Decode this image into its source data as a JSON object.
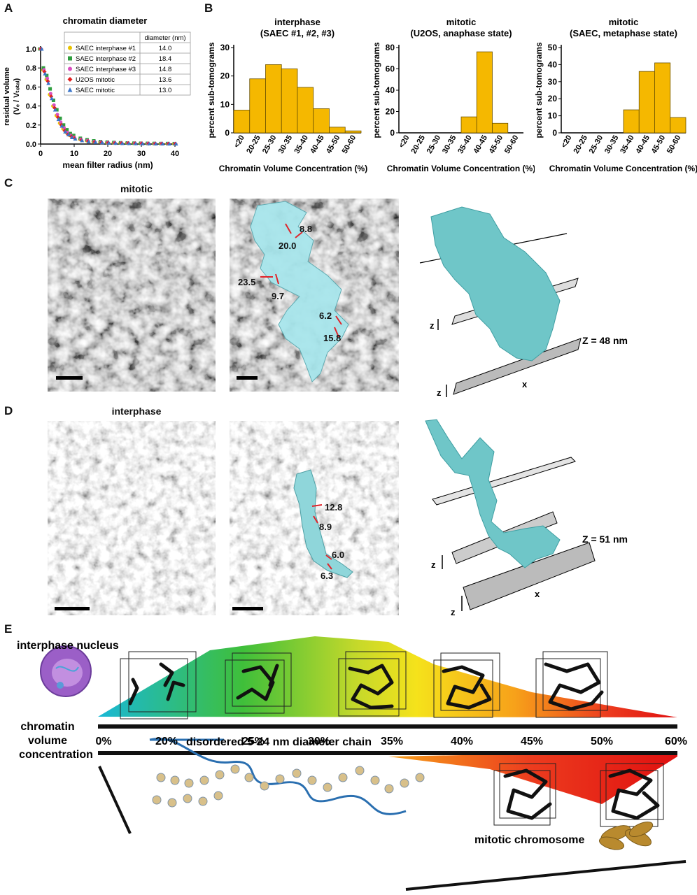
{
  "panels": {
    "A": "A",
    "B": "B",
    "C": "C",
    "D": "D",
    "E": "E"
  },
  "panelA": {
    "title": "chromatin diameter",
    "ylabel_main": "residual volume",
    "ylabel_sub": "(Vₑ / Vₜₒₜₐₗ)",
    "xlabel": "mean filter radius (nm)",
    "yticks": [
      "0.0",
      "0.2",
      "0.4",
      "0.6",
      "0.8",
      "1.0"
    ],
    "xticks": [
      "0",
      "10",
      "20",
      "30",
      "40"
    ],
    "legend_header": "diameter (nm)",
    "legend": [
      {
        "name": "SAEC interphase #1",
        "value": "14.0",
        "color": "#e8c200",
        "marker": "circle"
      },
      {
        "name": "SAEC interphase #2",
        "value": "18.4",
        "color": "#2e9e3e",
        "marker": "square"
      },
      {
        "name": "SAEC interphase #3",
        "value": "14.8",
        "color": "#d94fbf",
        "marker": "circle"
      },
      {
        "name": "U2OS mitotic",
        "value": "13.6",
        "color": "#e02020",
        "marker": "diamond"
      },
      {
        "name": "SAEC mitotic",
        "value": "13.0",
        "color": "#3a74c9",
        "marker": "triangle"
      }
    ]
  },
  "panelB": {
    "ylabel": "percent sub-tomograms",
    "xlabel": "Chromatin Volume Concentration (%)",
    "bar_color": "#f5b800",
    "categories": [
      "<20",
      "20-25",
      "25-30",
      "30-35",
      "35-40",
      "40-45",
      "45-50",
      "50-60"
    ],
    "charts": [
      {
        "title1": "interphase",
        "title2": "(SAEC #1, #2, #3)",
        "ymax": 30,
        "yticks": [
          "0",
          "10",
          "20",
          "30"
        ]
      },
      {
        "title1": "mitotic",
        "title2": "(U2OS, anaphase state)",
        "ymax": 80,
        "yticks": [
          "0",
          "20",
          "40",
          "60",
          "80"
        ]
      },
      {
        "title1": "mitotic",
        "title2": "(SAEC, metaphase state)",
        "ymax": 50,
        "yticks": [
          "0",
          "10",
          "20",
          "30",
          "40",
          "50"
        ]
      }
    ]
  },
  "chart_data": [
    {
      "type": "line",
      "title": "chromatin diameter",
      "xlabel": "mean filter radius (nm)",
      "ylabel": "residual volume (Vₑ / Vₜₒₜₐₗ)",
      "xlim": [
        0,
        40
      ],
      "ylim": [
        0,
        1.0
      ],
      "series": [
        {
          "name": "SAEC interphase #1",
          "x": [
            0,
            1,
            2,
            3,
            4,
            5,
            6,
            7,
            8,
            9,
            10,
            12,
            14,
            16,
            18,
            20,
            22,
            24,
            26,
            28,
            30,
            32,
            34,
            36,
            38,
            40
          ],
          "values": [
            1.0,
            0.78,
            0.68,
            0.52,
            0.4,
            0.3,
            0.22,
            0.16,
            0.12,
            0.09,
            0.07,
            0.05,
            0.035,
            0.025,
            0.02,
            0.015,
            0.012,
            0.01,
            0.01,
            0.008,
            0.007,
            0.006,
            0.005,
            0.005,
            0.004,
            0.004
          ]
        },
        {
          "name": "SAEC interphase #2",
          "x": [
            0,
            1,
            2,
            3,
            4,
            5,
            6,
            7,
            8,
            9,
            10,
            12,
            14,
            16,
            18,
            20,
            22,
            24,
            26,
            28,
            30,
            32,
            34,
            36,
            38,
            40
          ],
          "values": [
            1.0,
            0.8,
            0.72,
            0.58,
            0.46,
            0.36,
            0.27,
            0.2,
            0.15,
            0.11,
            0.09,
            0.06,
            0.045,
            0.033,
            0.025,
            0.02,
            0.016,
            0.013,
            0.011,
            0.009,
            0.008,
            0.007,
            0.006,
            0.005,
            0.005,
            0.004
          ]
        },
        {
          "name": "SAEC interphase #3",
          "x": [
            0,
            1,
            2,
            3,
            4,
            5,
            6,
            7,
            8,
            9,
            10,
            12,
            14,
            16,
            18,
            20,
            22,
            24,
            26,
            28,
            30,
            32,
            34,
            36,
            38,
            40
          ],
          "values": [
            1.0,
            0.78,
            0.69,
            0.53,
            0.41,
            0.31,
            0.23,
            0.17,
            0.12,
            0.09,
            0.07,
            0.05,
            0.036,
            0.026,
            0.02,
            0.016,
            0.012,
            0.01,
            0.01,
            0.008,
            0.007,
            0.006,
            0.005,
            0.005,
            0.004,
            0.004
          ]
        },
        {
          "name": "U2OS mitotic",
          "x": [
            0,
            1,
            2,
            3,
            4,
            5,
            6,
            7,
            8,
            9,
            10,
            12,
            14,
            16,
            18,
            20,
            22,
            24,
            26,
            28,
            30,
            32,
            34,
            36,
            38,
            40
          ],
          "values": [
            1.0,
            0.76,
            0.66,
            0.5,
            0.38,
            0.28,
            0.2,
            0.14,
            0.1,
            0.08,
            0.06,
            0.04,
            0.03,
            0.022,
            0.017,
            0.013,
            0.01,
            0.009,
            0.008,
            0.007,
            0.006,
            0.005,
            0.005,
            0.004,
            0.004,
            0.003
          ]
        },
        {
          "name": "SAEC mitotic",
          "x": [
            0,
            1,
            2,
            3,
            4,
            5,
            6,
            7,
            8,
            9,
            10,
            12,
            14,
            16,
            18,
            20,
            22,
            24,
            26,
            28,
            30,
            32,
            34,
            36,
            38,
            40
          ],
          "values": [
            1.0,
            0.74,
            0.64,
            0.48,
            0.36,
            0.26,
            0.19,
            0.13,
            0.1,
            0.07,
            0.055,
            0.038,
            0.027,
            0.02,
            0.016,
            0.012,
            0.01,
            0.008,
            0.007,
            0.006,
            0.005,
            0.005,
            0.004,
            0.004,
            0.003,
            0.003
          ]
        }
      ]
    },
    {
      "type": "bar",
      "title": "interphase (SAEC #1, #2, #3)",
      "xlabel": "Chromatin Volume Concentration (%)",
      "ylabel": "percent sub-tomograms",
      "ylim": [
        0,
        30
      ],
      "categories": [
        "<20",
        "20-25",
        "25-30",
        "30-35",
        "35-40",
        "40-45",
        "45-50",
        "50-60"
      ],
      "values": [
        8,
        19,
        24,
        22.5,
        16,
        8.5,
        2,
        0.7
      ]
    },
    {
      "type": "bar",
      "title": "mitotic (U2OS, anaphase state)",
      "xlabel": "Chromatin Volume Concentration (%)",
      "ylabel": "percent sub-tomograms",
      "ylim": [
        0,
        80
      ],
      "categories": [
        "<20",
        "20-25",
        "25-30",
        "30-35",
        "35-40",
        "40-45",
        "45-50",
        "50-60"
      ],
      "values": [
        0,
        0,
        0,
        0,
        15,
        76,
        9,
        0
      ]
    },
    {
      "type": "bar",
      "title": "mitotic (SAEC, metaphase state)",
      "xlabel": "Chromatin Volume Concentration (%)",
      "ylabel": "percent sub-tomograms",
      "ylim": [
        0,
        50
      ],
      "categories": [
        "<20",
        "20-25",
        "25-30",
        "30-35",
        "35-40",
        "40-45",
        "45-50",
        "50-60"
      ],
      "values": [
        0,
        0,
        0,
        0,
        13.5,
        36,
        41,
        9
      ]
    }
  ],
  "panelC": {
    "title": "mitotic",
    "measurements": [
      "8.8",
      "20.0",
      "23.5",
      "9.7",
      "6.2",
      "15.8"
    ],
    "z_label": "Z = 48 nm",
    "axis_z": "z",
    "axis_x": "x"
  },
  "panelD": {
    "title": "interphase",
    "measurements": [
      "12.8",
      "8.9",
      "6.0",
      "6.3"
    ],
    "z_label": "Z = 51 nm",
    "axis_z": "z",
    "axis_x": "x"
  },
  "panelE": {
    "nucleus_label": "interphase nucleus",
    "axis_label_lines": [
      "chromatin",
      "volume",
      "concentration"
    ],
    "scale": [
      "0%",
      "20%",
      "25%",
      "30%",
      "35%",
      "40%",
      "45%",
      "50%",
      "60%"
    ],
    "chain_label": "disordered 5-24 nm diameter chain",
    "chromosome_label": "mitotic chromosome"
  }
}
